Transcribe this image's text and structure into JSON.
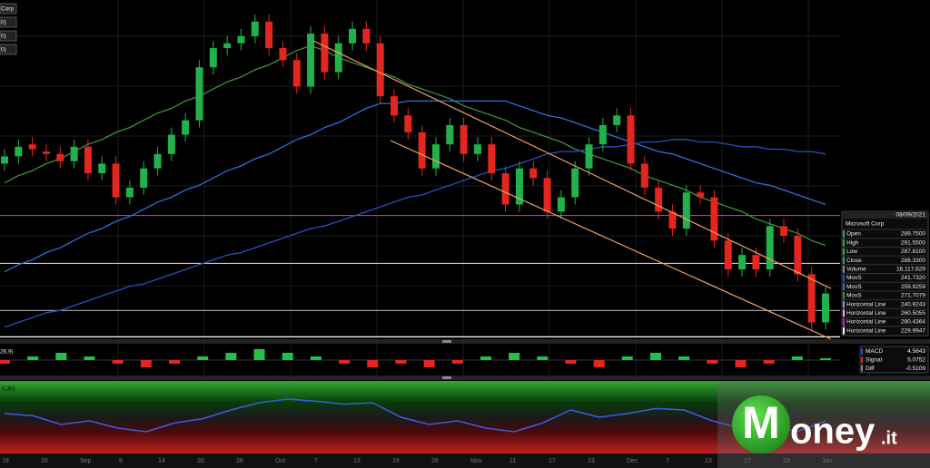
{
  "chart_data": {
    "type": "candlestick",
    "ylim": [
      229,
      370
    ],
    "candles": {
      "open": [
        302,
        305,
        310,
        307,
        306,
        303,
        309,
        298,
        302,
        288,
        292,
        300,
        306,
        314,
        320,
        342,
        350,
        352,
        355,
        361,
        350,
        345,
        334,
        356,
        340,
        352,
        358,
        352,
        330,
        322,
        315,
        300,
        310,
        318,
        306,
        310,
        298,
        285,
        300,
        296,
        282,
        288,
        300,
        310,
        318,
        322,
        302,
        292,
        282,
        275,
        290,
        288,
        270,
        258,
        264,
        258,
        276,
        272,
        256,
        236
      ],
      "high": [
        308,
        312,
        313,
        310,
        309,
        312,
        312,
        305,
        305,
        295,
        303,
        309,
        317,
        323,
        345,
        353,
        355,
        358,
        364,
        364,
        353,
        348,
        359,
        359,
        355,
        361,
        361,
        355,
        333,
        325,
        318,
        313,
        321,
        321,
        313,
        313,
        301,
        303,
        303,
        299,
        291,
        303,
        313,
        321,
        325,
        325,
        305,
        295,
        285,
        293,
        293,
        291,
        273,
        267,
        267,
        279,
        279,
        275,
        259,
        251
      ],
      "low": [
        299,
        302,
        305,
        303,
        300,
        300,
        295,
        295,
        285,
        285,
        289,
        297,
        303,
        311,
        317,
        339,
        347,
        349,
        352,
        347,
        342,
        331,
        331,
        337,
        337,
        349,
        349,
        327,
        319,
        312,
        297,
        297,
        307,
        303,
        303,
        295,
        282,
        282,
        293,
        279,
        279,
        285,
        297,
        307,
        315,
        299,
        289,
        279,
        272,
        272,
        285,
        267,
        255,
        255,
        255,
        255,
        269,
        253,
        233,
        233
      ],
      "close": [
        305,
        309,
        308,
        306,
        303,
        309,
        298,
        302,
        288,
        292,
        300,
        306,
        314,
        320,
        342,
        350,
        352,
        355,
        361,
        350,
        345,
        334,
        356,
        340,
        352,
        358,
        352,
        330,
        322,
        315,
        300,
        310,
        318,
        306,
        310,
        298,
        285,
        300,
        296,
        282,
        288,
        300,
        310,
        318,
        322,
        302,
        292,
        282,
        275,
        290,
        288,
        270,
        258,
        264,
        258,
        276,
        272,
        256,
        236,
        248
      ],
      "up_color": "#22b14c",
      "down_color": "#e3261f"
    },
    "moving_averages": [
      {
        "color": "#3f8f3a",
        "values": [
          294,
          297,
          299,
          302,
          304,
          307,
          310,
          312,
          315,
          317,
          320,
          323,
          325,
          328,
          330,
          333,
          336,
          338,
          341,
          343,
          346,
          349,
          351,
          349,
          346,
          344,
          342,
          340,
          338,
          335,
          333,
          331,
          329,
          326,
          324,
          322,
          320,
          317,
          315,
          313,
          311,
          308,
          306,
          304,
          302,
          300,
          297,
          295,
          293,
          291,
          288,
          286,
          284,
          282,
          279,
          277,
          275,
          273,
          270,
          268
        ]
      },
      {
        "color": "#2f6fd8",
        "values": [
          257,
          260,
          262,
          265,
          267,
          270,
          273,
          275,
          278,
          280,
          283,
          286,
          288,
          291,
          293,
          296,
          299,
          301,
          304,
          306,
          309,
          312,
          314,
          317,
          319,
          322,
          325,
          327,
          327,
          328,
          328,
          328,
          328,
          328,
          328,
          328,
          328,
          326,
          324,
          322,
          321,
          319,
          317,
          315,
          313,
          311,
          309,
          307,
          306,
          304,
          302,
          300,
          298,
          296,
          294,
          293,
          291,
          289,
          287,
          285
        ]
      },
      {
        "color": "#2a4fb8",
        "values": [
          234,
          236,
          238,
          240,
          241,
          243,
          245,
          247,
          249,
          251,
          252,
          254,
          256,
          258,
          260,
          262,
          264,
          265,
          267,
          269,
          271,
          273,
          275,
          276,
          278,
          280,
          282,
          284,
          286,
          288,
          289,
          291,
          293,
          295,
          297,
          299,
          300,
          302,
          304,
          306,
          307,
          307,
          308,
          309,
          309,
          310,
          311,
          311,
          312,
          312,
          311,
          311,
          310,
          309,
          309,
          308,
          308,
          307,
          307,
          306
        ]
      }
    ],
    "horizontal_lines": [
      {
        "value": 240.9243,
        "color": "#9a9a9a"
      },
      {
        "value": 260.5055,
        "color": "#f0a8f0"
      },
      {
        "value": 280.4364,
        "color": "#d21fd2"
      },
      {
        "value": 229.9947,
        "color": "#ffffff"
      }
    ],
    "macd_hist": {
      "values": [
        -1,
        1,
        2,
        1,
        -1,
        -2,
        -1,
        1,
        2,
        3,
        2,
        1,
        -1,
        -2,
        -1,
        -2,
        -1,
        1,
        2,
        1,
        -1,
        -2,
        1,
        2,
        1,
        -1,
        -2,
        -1,
        1,
        0.5
      ],
      "ylim": [
        -4,
        4
      ],
      "up_color": "#22c24a",
      "down_color": "#e3261f"
    },
    "rsi": {
      "values": [
        55,
        52,
        40,
        45,
        35,
        30,
        42,
        48,
        60,
        70,
        75,
        72,
        68,
        70,
        50,
        40,
        45,
        35,
        30,
        42,
        60,
        50,
        55,
        62,
        60,
        45,
        35,
        40,
        30,
        45
      ],
      "ylim": [
        0,
        100
      ],
      "color": "#3a5fe0"
    },
    "x_axis_labels": [
      "19",
      "26",
      "Sep",
      "8",
      "14",
      "20",
      "28",
      "Oct",
      "7",
      "13",
      "19",
      "26",
      "Nov",
      "11",
      "17",
      "23",
      "Dec",
      "7",
      "13",
      "17",
      "23",
      "Jan"
    ]
  },
  "top_labels": [
    "Corp",
    "0)",
    "0)",
    "0)"
  ],
  "macd_label": "26,9)",
  "rsi_label": "0,30)",
  "info_panel": {
    "date": "08/09/2021",
    "name": "Microsoft Corp",
    "rows": [
      {
        "label": "Open",
        "value": "289.7500",
        "color": "#22b14c"
      },
      {
        "label": "High",
        "value": "291.5500",
        "color": "#22b14c"
      },
      {
        "label": "Low",
        "value": "287.8100",
        "color": "#22b14c"
      },
      {
        "label": "Close",
        "value": "288.3300",
        "color": "#22b14c"
      },
      {
        "label": "Volume",
        "value": "16,117,629",
        "color": "#888888"
      },
      {
        "label": "MovS",
        "value": "241.7320",
        "color": "#2a4fb8"
      },
      {
        "label": "MovS",
        "value": "259.9259",
        "color": "#2f6fd8"
      },
      {
        "label": "MovS",
        "value": "271.7079",
        "color": "#3f8f3a"
      },
      {
        "label": "Horizontal Line",
        "value": "240.9243",
        "color": "#9a9a9a"
      },
      {
        "label": "Horizontal Line",
        "value": "260.5055",
        "color": "#f0a8f0"
      },
      {
        "label": "Horizontal Line",
        "value": "280.4364",
        "color": "#d21fd2"
      },
      {
        "label": "Horizontal Line",
        "value": "229.9947",
        "color": "#ffffff"
      }
    ]
  },
  "macd_panel": {
    "rows": [
      {
        "label": "MACD",
        "value": "4.5643",
        "color": "#2a4fb8"
      },
      {
        "label": "Signal",
        "value": "5.0752",
        "color": "#e3261f"
      },
      {
        "label": "Diff",
        "value": "-0.5109",
        "color": "#888888"
      }
    ]
  },
  "logo": {
    "initial": "M",
    "rest": "oney",
    "suffix": ".it"
  }
}
